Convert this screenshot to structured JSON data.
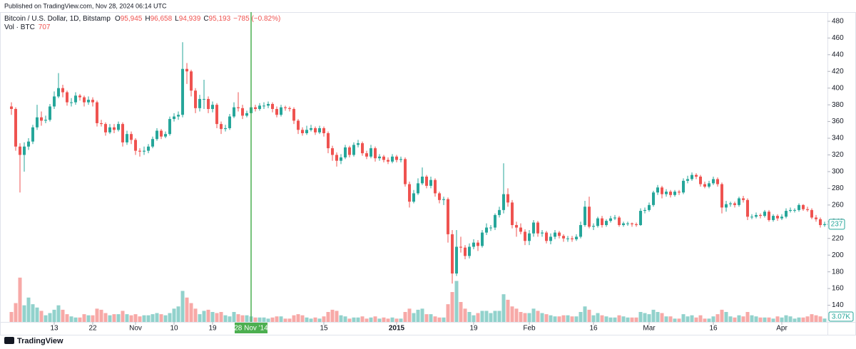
{
  "chart_data": {
    "type": "candlestick",
    "published": "Published on TradingView.com, Nov 28, 2024 06:14 UTC",
    "title": "Bitcoin / U.S. Dollar, 1D, Bitstamp",
    "legend_ohlc": [
      {
        "key": "O",
        "value": {
          "value": 95945,
          "label": "95,945"
        }
      },
      {
        "key": "H",
        "value": {
          "value": 96658,
          "label": "96,658"
        }
      },
      {
        "key": "L",
        "value": {
          "value": 94939,
          "label": "94,939"
        }
      },
      {
        "key": "C",
        "value": {
          "value": 95193,
          "label": "95,193"
        }
      }
    ],
    "legend_change": "−785 (−0.82%)",
    "volume_label": "Vol · BTC",
    "volume_legend_value": 707,
    "brand": "TradingView",
    "up_color": "#26a69a",
    "down_color": "#ef5350",
    "crosshair_color": "#4caf50",
    "grid": false,
    "ylim": [
      120,
      491
    ],
    "yticks": [
      140,
      160,
      180,
      200,
      220,
      240,
      260,
      280,
      300,
      320,
      340,
      360,
      380,
      400,
      420,
      440,
      460,
      480
    ],
    "volume_ylim": [
      0,
      45000
    ],
    "last_price": 237,
    "volume_last": {
      "value": 3070,
      "label": "3.07K"
    },
    "crosshair": {
      "x": "2014-11-28",
      "label": "28 Nov '14"
    },
    "xticks": [
      {
        "value": "2014-10-13",
        "label": "13"
      },
      {
        "value": "2014-10-22",
        "label": "22"
      },
      {
        "value": "2014-11-01",
        "label": "Nov"
      },
      {
        "value": "2014-11-10",
        "label": "10"
      },
      {
        "value": "2014-11-19",
        "label": "19"
      },
      {
        "value": "2014-12-15",
        "label": "15"
      },
      {
        "value": "2015-01-01",
        "label": "2015"
      },
      {
        "value": "2015-01-19",
        "label": "19"
      },
      {
        "value": "2015-02-01",
        "label": "Feb"
      },
      {
        "value": "2015-02-16",
        "label": "16"
      },
      {
        "value": "2015-03-01",
        "label": "Mar"
      },
      {
        "value": "2015-03-16",
        "label": "16"
      },
      {
        "value": "2015-04-01",
        "label": "Apr"
      }
    ],
    "x": [
      "2014-10-03",
      "2014-10-04",
      "2014-10-05",
      "2014-10-06",
      "2014-10-07",
      "2014-10-08",
      "2014-10-09",
      "2014-10-10",
      "2014-10-11",
      "2014-10-12",
      "2014-10-13",
      "2014-10-14",
      "2014-10-15",
      "2014-10-16",
      "2014-10-17",
      "2014-10-18",
      "2014-10-19",
      "2014-10-20",
      "2014-10-21",
      "2014-10-22",
      "2014-10-23",
      "2014-10-24",
      "2014-10-25",
      "2014-10-26",
      "2014-10-27",
      "2014-10-28",
      "2014-10-29",
      "2014-10-30",
      "2014-10-31",
      "2014-11-01",
      "2014-11-02",
      "2014-11-03",
      "2014-11-04",
      "2014-11-05",
      "2014-11-06",
      "2014-11-07",
      "2014-11-08",
      "2014-11-09",
      "2014-11-10",
      "2014-11-11",
      "2014-11-12",
      "2014-11-13",
      "2014-11-14",
      "2014-11-15",
      "2014-11-16",
      "2014-11-17",
      "2014-11-18",
      "2014-11-19",
      "2014-11-20",
      "2014-11-21",
      "2014-11-22",
      "2014-11-23",
      "2014-11-24",
      "2014-11-25",
      "2014-11-26",
      "2014-11-27",
      "2014-11-28",
      "2014-11-29",
      "2014-11-30",
      "2014-12-01",
      "2014-12-02",
      "2014-12-03",
      "2014-12-04",
      "2014-12-05",
      "2014-12-06",
      "2014-12-07",
      "2014-12-08",
      "2014-12-09",
      "2014-12-10",
      "2014-12-11",
      "2014-12-12",
      "2014-12-13",
      "2014-12-14",
      "2014-12-15",
      "2014-12-16",
      "2014-12-17",
      "2014-12-18",
      "2014-12-19",
      "2014-12-20",
      "2014-12-21",
      "2014-12-22",
      "2014-12-23",
      "2014-12-24",
      "2014-12-25",
      "2014-12-26",
      "2014-12-27",
      "2014-12-28",
      "2014-12-29",
      "2014-12-30",
      "2014-12-31",
      "2015-01-01",
      "2015-01-02",
      "2015-01-03",
      "2015-01-04",
      "2015-01-05",
      "2015-01-06",
      "2015-01-07",
      "2015-01-08",
      "2015-01-09",
      "2015-01-10",
      "2015-01-11",
      "2015-01-12",
      "2015-01-13",
      "2015-01-14",
      "2015-01-15",
      "2015-01-16",
      "2015-01-17",
      "2015-01-18",
      "2015-01-19",
      "2015-01-20",
      "2015-01-21",
      "2015-01-22",
      "2015-01-23",
      "2015-01-24",
      "2015-01-25",
      "2015-01-26",
      "2015-01-27",
      "2015-01-28",
      "2015-01-29",
      "2015-01-30",
      "2015-01-31",
      "2015-02-01",
      "2015-02-02",
      "2015-02-03",
      "2015-02-04",
      "2015-02-05",
      "2015-02-06",
      "2015-02-07",
      "2015-02-08",
      "2015-02-09",
      "2015-02-10",
      "2015-02-11",
      "2015-02-12",
      "2015-02-13",
      "2015-02-14",
      "2015-02-15",
      "2015-02-16",
      "2015-02-17",
      "2015-02-18",
      "2015-02-19",
      "2015-02-20",
      "2015-02-21",
      "2015-02-22",
      "2015-02-23",
      "2015-02-24",
      "2015-02-25",
      "2015-02-26",
      "2015-02-27",
      "2015-02-28",
      "2015-03-01",
      "2015-03-02",
      "2015-03-03",
      "2015-03-04",
      "2015-03-05",
      "2015-03-06",
      "2015-03-07",
      "2015-03-08",
      "2015-03-09",
      "2015-03-10",
      "2015-03-11",
      "2015-03-12",
      "2015-03-13",
      "2015-03-14",
      "2015-03-15",
      "2015-03-16",
      "2015-03-17",
      "2015-03-18",
      "2015-03-19",
      "2015-03-20",
      "2015-03-21",
      "2015-03-22",
      "2015-03-23",
      "2015-03-24",
      "2015-03-25",
      "2015-03-26",
      "2015-03-27",
      "2015-03-28",
      "2015-03-29",
      "2015-03-30",
      "2015-03-31",
      "2015-04-01",
      "2015-04-02",
      "2015-04-03",
      "2015-04-04",
      "2015-04-05",
      "2015-04-06",
      "2015-04-07",
      "2015-04-08",
      "2015-04-09",
      "2015-04-10",
      "2015-04-11"
    ],
    "open": [
      378,
      375,
      330,
      320,
      330,
      336,
      353,
      365,
      361,
      362,
      378,
      390,
      400,
      395,
      383,
      383,
      391,
      389,
      383,
      386,
      383,
      358,
      357,
      347,
      353,
      350,
      357,
      335,
      345,
      338,
      325,
      324,
      325,
      330,
      339,
      349,
      342,
      345,
      363,
      366,
      368,
      423,
      420,
      397,
      376,
      387,
      387,
      375,
      380,
      357,
      351,
      352,
      366,
      377,
      376,
      367,
      370,
      377,
      375,
      379,
      379,
      381,
      375,
      368,
      377,
      376,
      375,
      361,
      350,
      346,
      350,
      352,
      347,
      352,
      346,
      328,
      320,
      313,
      317,
      329,
      320,
      332,
      334,
      322,
      318,
      328,
      316,
      318,
      314,
      312,
      318,
      314,
      315,
      285,
      264,
      274,
      286,
      294,
      283,
      290,
      274,
      266,
      267,
      225,
      178,
      210,
      209,
      199,
      210,
      215,
      211,
      227,
      233,
      233,
      248,
      254,
      273,
      263,
      236,
      233,
      228,
      217,
      226,
      239,
      226,
      227,
      217,
      222,
      227,
      223,
      220,
      220,
      219,
      222,
      236,
      258,
      234,
      235,
      244,
      236,
      241,
      244,
      245,
      236,
      238,
      238,
      237,
      236,
      253,
      254,
      260,
      275,
      281,
      273,
      276,
      272,
      276,
      275,
      289,
      291,
      296,
      294,
      285,
      282,
      286,
      291,
      285,
      257,
      261,
      262,
      260,
      268,
      266,
      246,
      246,
      248,
      247,
      252,
      242,
      247,
      244,
      246,
      253,
      254,
      254,
      260,
      255,
      254,
      245,
      243,
      236
    ],
    "high": [
      383,
      377,
      334,
      335,
      340,
      356,
      380,
      372,
      367,
      381,
      396,
      418,
      404,
      397,
      388,
      395,
      393,
      391,
      390,
      389,
      385,
      362,
      359,
      357,
      357,
      360,
      359,
      349,
      348,
      340,
      328,
      330,
      333,
      342,
      352,
      351,
      348,
      366,
      370,
      372,
      455,
      430,
      422,
      400,
      392,
      410,
      390,
      384,
      382,
      360,
      356,
      369,
      383,
      395,
      380,
      373,
      382,
      380,
      382,
      383,
      384,
      383,
      378,
      380,
      379,
      378,
      377,
      363,
      353,
      355,
      356,
      354,
      355,
      354,
      348,
      331,
      323,
      321,
      332,
      331,
      335,
      338,
      336,
      325,
      332,
      330,
      321,
      320,
      317,
      321,
      320,
      318,
      317,
      288,
      278,
      292,
      305,
      296,
      294,
      292,
      276,
      270,
      269,
      230,
      230,
      222,
      212,
      214,
      219,
      218,
      230,
      238,
      236,
      250,
      258,
      310,
      280,
      266,
      240,
      238,
      231,
      230,
      242,
      241,
      230,
      229,
      226,
      230,
      229,
      225,
      223,
      223,
      225,
      240,
      265,
      270,
      238,
      246,
      247,
      243,
      247,
      248,
      247,
      240,
      240,
      239,
      239,
      256,
      257,
      263,
      277,
      284,
      283,
      279,
      278,
      278,
      278,
      292,
      295,
      299,
      298,
      296,
      288,
      289,
      294,
      293,
      287,
      265,
      264,
      264,
      270,
      271,
      268,
      249,
      251,
      250,
      254,
      254,
      249,
      249,
      249,
      256,
      257,
      256,
      262,
      261,
      258,
      256,
      248,
      245,
      240
    ],
    "low": [
      368,
      325,
      275,
      300,
      326,
      333,
      350,
      355,
      358,
      360,
      375,
      388,
      389,
      379,
      378,
      380,
      385,
      378,
      380,
      378,
      354,
      354,
      343,
      345,
      346,
      348,
      330,
      332,
      333,
      320,
      318,
      320,
      322,
      328,
      337,
      339,
      340,
      343,
      360,
      362,
      365,
      405,
      390,
      370,
      372,
      375,
      370,
      371,
      352,
      345,
      348,
      350,
      364,
      372,
      363,
      365,
      362,
      372,
      373,
      375,
      376,
      371,
      365,
      366,
      373,
      372,
      357,
      345,
      343,
      344,
      348,
      344,
      345,
      342,
      322,
      313,
      306,
      309,
      315,
      317,
      318,
      329,
      319,
      315,
      316,
      312,
      313,
      311,
      309,
      310,
      311,
      311,
      282,
      257,
      262,
      272,
      284,
      280,
      280,
      270,
      262,
      260,
      215,
      166,
      175,
      203,
      195,
      196,
      207,
      205,
      209,
      224,
      229,
      230,
      245,
      250,
      258,
      232,
      222,
      225,
      212,
      212,
      222,
      222,
      222,
      214,
      213,
      219,
      220,
      216,
      216,
      216,
      217,
      220,
      234,
      232,
      230,
      233,
      233,
      234,
      239,
      242,
      234,
      234,
      235,
      234,
      234,
      235,
      250,
      252,
      258,
      272,
      268,
      270,
      269,
      270,
      272,
      273,
      286,
      289,
      291,
      282,
      280,
      280,
      284,
      282,
      250,
      252,
      258,
      257,
      258,
      263,
      242,
      243,
      244,
      244,
      245,
      240,
      240,
      241,
      242,
      244,
      251,
      251,
      252,
      253,
      252,
      243,
      240,
      233,
      234
    ],
    "close": [
      375,
      330,
      320,
      330,
      336,
      353,
      365,
      361,
      362,
      378,
      390,
      400,
      395,
      383,
      383,
      391,
      389,
      383,
      386,
      383,
      358,
      357,
      347,
      353,
      350,
      357,
      335,
      345,
      338,
      325,
      324,
      325,
      330,
      339,
      349,
      342,
      345,
      363,
      366,
      368,
      423,
      420,
      397,
      376,
      387,
      387,
      375,
      380,
      357,
      351,
      352,
      366,
      377,
      376,
      367,
      370,
      377,
      375,
      379,
      379,
      381,
      375,
      368,
      377,
      376,
      375,
      361,
      350,
      346,
      350,
      352,
      347,
      352,
      346,
      328,
      320,
      313,
      317,
      329,
      320,
      332,
      334,
      322,
      318,
      328,
      316,
      318,
      314,
      312,
      318,
      314,
      315,
      285,
      264,
      274,
      286,
      294,
      283,
      290,
      274,
      266,
      267,
      225,
      178,
      210,
      209,
      199,
      210,
      215,
      211,
      227,
      233,
      233,
      248,
      254,
      273,
      263,
      236,
      233,
      228,
      217,
      226,
      239,
      226,
      227,
      217,
      222,
      227,
      223,
      220,
      220,
      219,
      222,
      236,
      258,
      234,
      235,
      244,
      236,
      241,
      244,
      245,
      236,
      238,
      238,
      237,
      236,
      253,
      254,
      260,
      275,
      281,
      273,
      276,
      272,
      276,
      275,
      289,
      291,
      296,
      294,
      285,
      282,
      286,
      291,
      285,
      257,
      261,
      262,
      260,
      268,
      266,
      246,
      246,
      248,
      247,
      252,
      242,
      247,
      244,
      246,
      253,
      254,
      254,
      260,
      255,
      254,
      245,
      243,
      236,
      237
    ],
    "volume": [
      9000,
      17000,
      40000,
      15000,
      22000,
      16000,
      13000,
      10000,
      6000,
      8000,
      11000,
      15000,
      11000,
      7000,
      5000,
      4000,
      4000,
      7000,
      6000,
      6000,
      12000,
      11000,
      8000,
      6000,
      7000,
      7000,
      10000,
      7000,
      6000,
      7000,
      5000,
      6000,
      6000,
      7000,
      8000,
      7000,
      6000,
      8000,
      12000,
      14000,
      28000,
      22000,
      17000,
      12000,
      7000,
      10000,
      11000,
      9000,
      8000,
      9000,
      6000,
      5000,
      9000,
      7000,
      6000,
      6000,
      5000,
      4000,
      4000,
      4000,
      3000,
      4000,
      5000,
      5000,
      3000,
      3000,
      6000,
      7000,
      6000,
      4000,
      3000,
      4000,
      3000,
      5000,
      9000,
      11000,
      10000,
      6000,
      5000,
      3000,
      4000,
      4000,
      5000,
      3000,
      4000,
      5000,
      3000,
      4000,
      3000,
      4000,
      3000,
      3000,
      9000,
      12000,
      8000,
      11000,
      12000,
      7000,
      7000,
      5000,
      4000,
      4000,
      16000,
      27000,
      37000,
      18000,
      12000,
      9000,
      6000,
      8000,
      10000,
      10000,
      8000,
      10000,
      10000,
      25000,
      20000,
      14000,
      12000,
      9000,
      8000,
      8000,
      12000,
      10000,
      8000,
      7000,
      6000,
      5000,
      5000,
      6000,
      6000,
      5000,
      5000,
      9000,
      14000,
      11000,
      6000,
      8000,
      6000,
      5000,
      4000,
      4000,
      6000,
      5000,
      4000,
      4000,
      4000,
      9000,
      8000,
      7000,
      11000,
      9000,
      8000,
      5000,
      5000,
      3000,
      3000,
      7000,
      5000,
      6000,
      4000,
      6000,
      3000,
      3000,
      5000,
      7000,
      11000,
      9000,
      5000,
      4000,
      6000,
      5000,
      9000,
      6000,
      5000,
      4000,
      4000,
      4000,
      3000,
      5000,
      4000,
      6000,
      5000,
      3000,
      4000,
      4000,
      5000,
      7000,
      6000,
      5000,
      3070
    ]
  }
}
